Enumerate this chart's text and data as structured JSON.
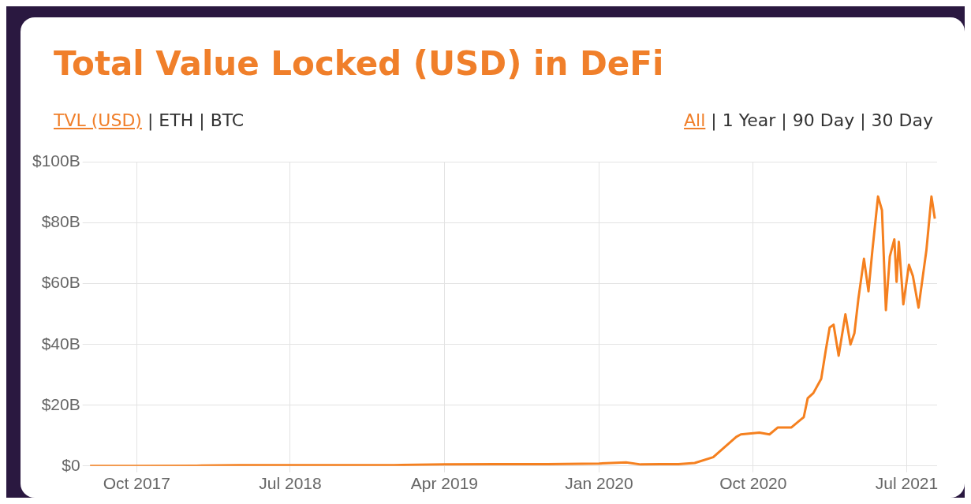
{
  "chart_data": {
    "type": "line",
    "title": "Total Value Locked (USD) in DeFi",
    "annotations": [
      "TVL (USD) | ETH | BTC",
      "All | 1 Year | 90 Day | 30 Day"
    ],
    "x": [
      "2017-07-10",
      "2017-10-01",
      "2018-01-15",
      "2018-04-01",
      "2018-07-01",
      "2018-10-01",
      "2019-01-01",
      "2019-04-01",
      "2019-07-01",
      "2019-10-01",
      "2020-01-01",
      "2020-02-18",
      "2020-03-15",
      "2020-04-20",
      "2020-05-21",
      "2020-06-19",
      "2020-07-22",
      "2020-09-01",
      "2020-09-09",
      "2020-10-12",
      "2020-10-30",
      "2020-11-14",
      "2020-12-08",
      "2020-12-30",
      "2021-01-06",
      "2021-01-16",
      "2021-01-30",
      "2021-02-07",
      "2021-02-14",
      "2021-02-21",
      "2021-03-02",
      "2021-03-14",
      "2021-03-23",
      "2021-03-30",
      "2021-04-06",
      "2021-04-16",
      "2021-04-24",
      "2021-05-01",
      "2021-05-11",
      "2021-05-18",
      "2021-05-25",
      "2021-06-01",
      "2021-06-09",
      "2021-06-13",
      "2021-06-17",
      "2021-06-25",
      "2021-07-05",
      "2021-07-12",
      "2021-07-22",
      "2021-08-05",
      "2021-08-14",
      "2021-08-20"
    ],
    "series": [
      {
        "color": "#f5801f",
        "values": [
          0,
          0,
          0.1,
          0.3,
          0.3,
          0.3,
          0.3,
          0.5,
          0.6,
          0.6,
          0.8,
          1.2,
          0.5,
          0.6,
          0.6,
          1.0,
          2.9,
          9.6,
          10.4,
          11.0,
          10.4,
          12.7,
          12.7,
          16.1,
          22.3,
          24.0,
          28.7,
          38.0,
          45.6,
          46.5,
          36.3,
          49.9,
          40.0,
          43.7,
          54.9,
          68.2,
          57.5,
          71.0,
          88.7,
          84.2,
          51.3,
          69.0,
          74.6,
          60.6,
          73.8,
          53.2,
          66.2,
          62.5,
          52.1,
          71.0,
          88.7,
          81.4
        ]
      }
    ],
    "xlim": [
      "2017-07-08",
      "2021-08-24"
    ],
    "xticks": [
      {
        "value": "2017-10-01",
        "label": "Oct 2017"
      },
      {
        "value": "2018-07-01",
        "label": "Jul 2018"
      },
      {
        "value": "2019-04-01",
        "label": "Apr 2019"
      },
      {
        "value": "2020-01-01",
        "label": "Jan 2020"
      },
      {
        "value": "2020-10-01",
        "label": "Oct 2020"
      },
      {
        "value": "2021-07-01",
        "label": "Jul 2021"
      }
    ],
    "ylim": [
      0,
      100
    ],
    "yticks": [
      {
        "value": 0,
        "label": "$0"
      },
      {
        "value": 20,
        "label": "$20B"
      },
      {
        "value": 40,
        "label": "$40B"
      },
      {
        "value": 60,
        "label": "$60B"
      },
      {
        "value": 80,
        "label": "$80B"
      },
      {
        "value": 100,
        "label": "$100B"
      }
    ],
    "grid": true,
    "legend": false,
    "marker": "none",
    "line_style": "solid"
  }
}
